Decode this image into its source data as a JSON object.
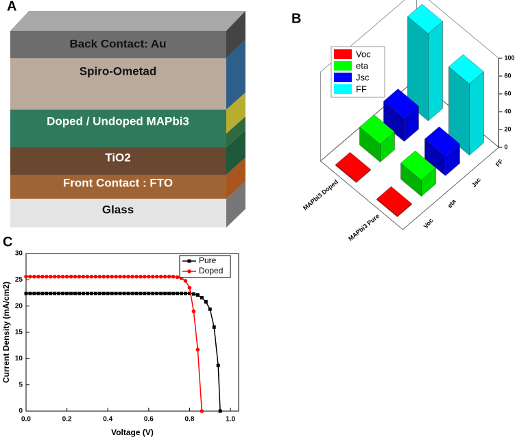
{
  "diagram": {
    "label": "A",
    "layers": [
      "Back Contact: Au",
      "Spiro-Ometad",
      "Doped / Undoped MAPbi3",
      "TiO2",
      "Front Contact : FTO",
      "Glass"
    ]
  },
  "chart_data": [
    {
      "type": "bar3d",
      "label": "B",
      "categories": [
        "MAPbi3 Doped",
        "MAPbi3 Pure"
      ],
      "series": [
        {
          "name": "Voc",
          "color": "#ff0000",
          "values": [
            1,
            1
          ]
        },
        {
          "name": "eta",
          "color": "#00ff00",
          "values": [
            20,
            18
          ]
        },
        {
          "name": "Jsc",
          "color": "#0000ff",
          "values": [
            26,
            22
          ]
        },
        {
          "name": "FF",
          "color": "#00ffff",
          "values": [
            98,
            80
          ]
        }
      ],
      "zlim": [
        0,
        100
      ],
      "zticks": [
        0,
        20,
        40,
        60,
        80,
        100
      ],
      "legend": "top-left"
    },
    {
      "type": "line",
      "label": "C",
      "xlabel": "Voltage (V)",
      "ylabel": "Current Density (mA/cm2)",
      "xlim": [
        0,
        1.04
      ],
      "ylim": [
        0,
        30
      ],
      "xticks": [
        {
          "value": 0,
          "label": "0.0"
        },
        0.2,
        0.4,
        0.6,
        0.8,
        {
          "value": 1,
          "label": "1.0"
        }
      ],
      "yticks": [
        0,
        5,
        10,
        15,
        20,
        25,
        30
      ],
      "legend": "top-right",
      "series": [
        {
          "name": "Pure",
          "color": "#000000",
          "marker": "square",
          "x": [
            0,
            0.02,
            0.04,
            0.06,
            0.08,
            0.1,
            0.12,
            0.14,
            0.16,
            0.18,
            0.2,
            0.22,
            0.24,
            0.26,
            0.28,
            0.3,
            0.32,
            0.34,
            0.36,
            0.38,
            0.4,
            0.42,
            0.44,
            0.46,
            0.48,
            0.5,
            0.52,
            0.54,
            0.56,
            0.58,
            0.6,
            0.62,
            0.64,
            0.66,
            0.68,
            0.7,
            0.72,
            0.74,
            0.76,
            0.78,
            0.8,
            0.82,
            0.84,
            0.86,
            0.88,
            0.9,
            0.92,
            0.94,
            0.95
          ],
          "values": [
            22.4,
            22.4,
            22.4,
            22.4,
            22.4,
            22.4,
            22.4,
            22.4,
            22.4,
            22.4,
            22.4,
            22.4,
            22.4,
            22.4,
            22.4,
            22.4,
            22.4,
            22.4,
            22.4,
            22.4,
            22.4,
            22.4,
            22.4,
            22.4,
            22.4,
            22.4,
            22.4,
            22.4,
            22.4,
            22.4,
            22.4,
            22.4,
            22.4,
            22.4,
            22.4,
            22.4,
            22.4,
            22.4,
            22.4,
            22.4,
            22.4,
            22.3,
            22.1,
            21.6,
            20.8,
            19.4,
            16.0,
            8.7,
            0
          ]
        },
        {
          "name": "Doped",
          "color": "#ff0000",
          "marker": "circle",
          "x": [
            0,
            0.02,
            0.04,
            0.06,
            0.08,
            0.1,
            0.12,
            0.14,
            0.16,
            0.18,
            0.2,
            0.22,
            0.24,
            0.26,
            0.28,
            0.3,
            0.32,
            0.34,
            0.36,
            0.38,
            0.4,
            0.42,
            0.44,
            0.46,
            0.48,
            0.5,
            0.52,
            0.54,
            0.56,
            0.58,
            0.6,
            0.62,
            0.64,
            0.66,
            0.68,
            0.7,
            0.72,
            0.74,
            0.76,
            0.78,
            0.8,
            0.82,
            0.84,
            0.86
          ],
          "values": [
            25.6,
            25.6,
            25.6,
            25.6,
            25.6,
            25.6,
            25.6,
            25.6,
            25.6,
            25.6,
            25.6,
            25.6,
            25.6,
            25.6,
            25.6,
            25.6,
            25.6,
            25.6,
            25.6,
            25.6,
            25.6,
            25.6,
            25.6,
            25.6,
            25.6,
            25.6,
            25.6,
            25.6,
            25.6,
            25.6,
            25.6,
            25.6,
            25.6,
            25.6,
            25.6,
            25.6,
            25.6,
            25.5,
            25.3,
            24.8,
            23.5,
            19,
            11.7,
            0
          ]
        }
      ]
    }
  ]
}
